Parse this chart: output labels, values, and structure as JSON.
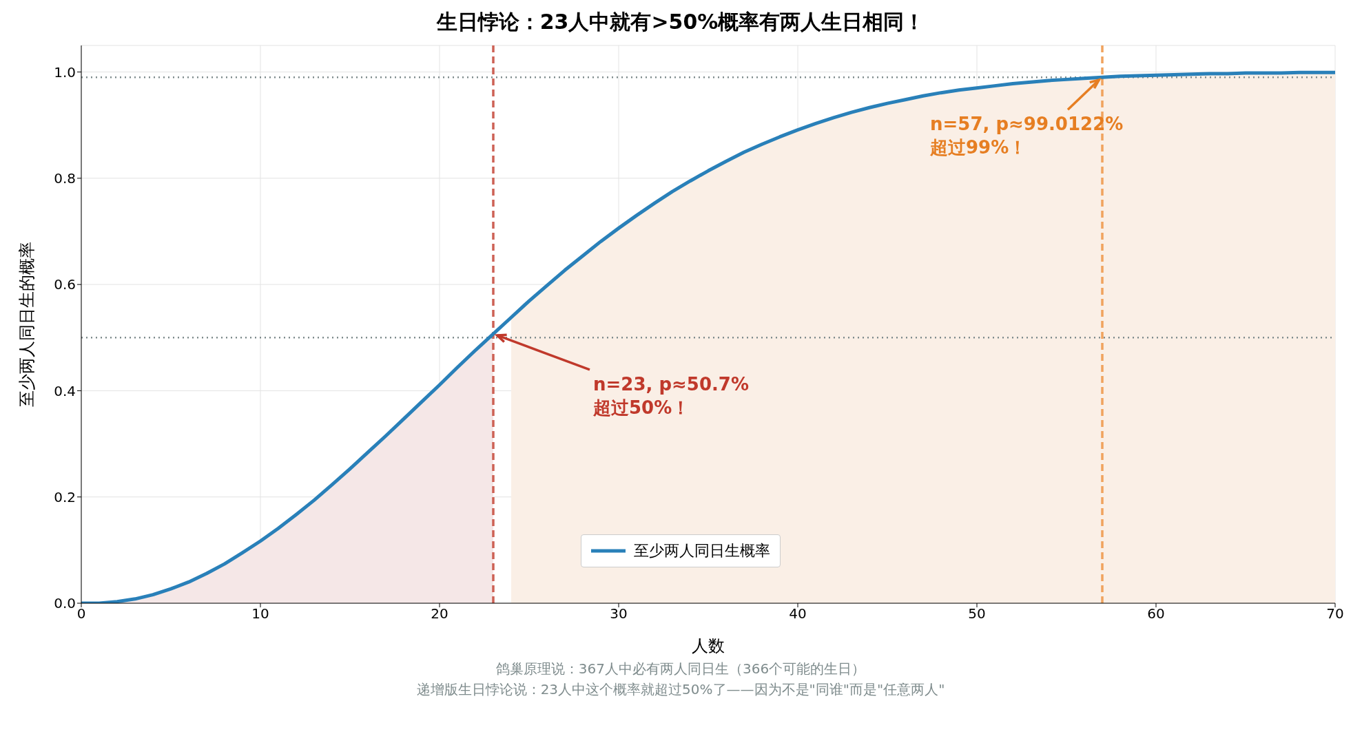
{
  "chart_data": {
    "type": "line",
    "title": "生日悖论：23人中就有>50%概率有两人生日相同！",
    "xlabel": "人数",
    "ylabel": "至少两人同日生的概率",
    "x": [
      0,
      1,
      2,
      3,
      4,
      5,
      6,
      7,
      8,
      9,
      10,
      11,
      12,
      13,
      14,
      15,
      16,
      17,
      18,
      19,
      20,
      21,
      22,
      23,
      24,
      25,
      26,
      27,
      28,
      29,
      30,
      31,
      32,
      33,
      34,
      35,
      36,
      37,
      38,
      39,
      40,
      41,
      42,
      43,
      44,
      45,
      46,
      47,
      48,
      49,
      50,
      51,
      52,
      53,
      54,
      55,
      56,
      57,
      58,
      59,
      60,
      61,
      62,
      63,
      64,
      65,
      66,
      67,
      68,
      69,
      70
    ],
    "series": [
      {
        "type": "area",
        "color": "#f5e7e7",
        "x": [
          0,
          1,
          2,
          3,
          4,
          5,
          6,
          7,
          8,
          9,
          10,
          11,
          12,
          13,
          14,
          15,
          16,
          17,
          18,
          19,
          20,
          21,
          22,
          23
        ],
        "values": [
          0,
          0,
          0.003,
          0.008,
          0.016,
          0.027,
          0.04,
          0.056,
          0.074,
          0.095,
          0.117,
          0.141,
          0.167,
          0.194,
          0.223,
          0.253,
          0.284,
          0.315,
          0.347,
          0.379,
          0.411,
          0.444,
          0.476,
          0.507
        ]
      },
      {
        "type": "area",
        "color": "#faefe6",
        "x": [
          24,
          25,
          26,
          27,
          28,
          29,
          30,
          31,
          32,
          33,
          34,
          35,
          36,
          37,
          38,
          39,
          40,
          41,
          42,
          43,
          44,
          45,
          46,
          47,
          48,
          49,
          50,
          51,
          52,
          53,
          54,
          55,
          56,
          57,
          58,
          59,
          60,
          61,
          62,
          63,
          64,
          65,
          66,
          67,
          68,
          69,
          70
        ],
        "values": [
          0.538,
          0.569,
          0.598,
          0.627,
          0.654,
          0.681,
          0.706,
          0.73,
          0.753,
          0.775,
          0.795,
          0.814,
          0.832,
          0.849,
          0.864,
          0.878,
          0.891,
          0.903,
          0.914,
          0.924,
          0.933,
          0.941,
          0.948,
          0.955,
          0.961,
          0.966,
          0.97,
          0.974,
          0.978,
          0.981,
          0.984,
          0.986,
          0.988,
          0.99,
          0.992,
          0.993,
          0.994,
          0.995,
          0.996,
          0.997,
          0.997,
          0.998,
          0.998,
          0.998,
          0.999,
          0.999,
          0.999
        ]
      },
      {
        "name": "至少两人同日生概率",
        "color": "#2980b9",
        "values": [
          0,
          0,
          0.003,
          0.008,
          0.016,
          0.027,
          0.04,
          0.056,
          0.074,
          0.095,
          0.117,
          0.141,
          0.167,
          0.194,
          0.223,
          0.253,
          0.284,
          0.315,
          0.347,
          0.379,
          0.411,
          0.444,
          0.476,
          0.507,
          0.538,
          0.569,
          0.598,
          0.627,
          0.654,
          0.681,
          0.706,
          0.73,
          0.753,
          0.775,
          0.795,
          0.814,
          0.832,
          0.849,
          0.864,
          0.878,
          0.891,
          0.903,
          0.914,
          0.924,
          0.933,
          0.941,
          0.948,
          0.955,
          0.961,
          0.966,
          0.97,
          0.974,
          0.978,
          0.981,
          0.984,
          0.986,
          0.988,
          0.99,
          0.992,
          0.993,
          0.994,
          0.995,
          0.996,
          0.997,
          0.997,
          0.998,
          0.998,
          0.998,
          0.999,
          0.999,
          0.999
        ]
      }
    ],
    "xlim": [
      0,
      70
    ],
    "xticks": [
      0,
      10,
      20,
      30,
      40,
      50,
      60,
      70
    ],
    "ylim": [
      0,
      1.05
    ],
    "yticks": [
      {
        "value": 0,
        "label": "0.0"
      },
      {
        "value": 0.2,
        "label": "0.2"
      },
      {
        "value": 0.4,
        "label": "0.4"
      },
      {
        "value": 0.6,
        "label": "0.6"
      },
      {
        "value": 0.8,
        "label": "0.8"
      },
      {
        "value": 1,
        "label": "1.0"
      }
    ],
    "ref_lines": [
      {
        "axis": "x",
        "value": 23,
        "color": "#cd6155",
        "line_style": "dashed"
      },
      {
        "axis": "x",
        "value": 57,
        "color": "#f0a35e",
        "line_style": "dashed"
      },
      {
        "axis": "y",
        "value": 0.5,
        "color": "#7f8c8d",
        "line_style": "dotted"
      },
      {
        "axis": "y",
        "value": 0.99,
        "color": "#7f8c8d",
        "line_style": "dotted"
      }
    ],
    "annotations": [
      {
        "text": "n=23, p≈50.7%\n超过50%！",
        "x": 23,
        "y": 0.507
      },
      {
        "text": "n=57, p≈99.0122%\n超过99%！",
        "x": 57,
        "y": 0.99
      },
      "鸽巢原理说：367人中必有两人同日生（366个可能的生日）",
      "递增版生日悖论说：23人中这个概率就超过50%了——因为不是\"同谁\"而是\"任意两人\""
    ],
    "grid": true,
    "legend": "bottom",
    "line_style": "solid",
    "marker": "none"
  }
}
